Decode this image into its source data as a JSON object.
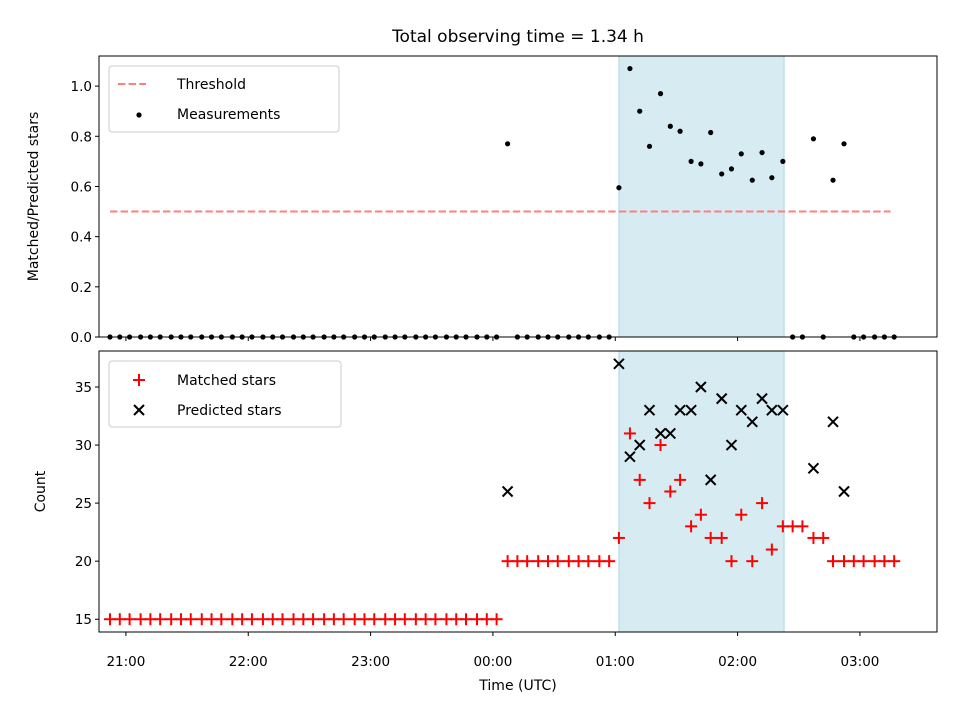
{
  "chart_data": [
    {
      "type": "scatter",
      "title": "Total observing time = 1.34 h",
      "xlabel": "",
      "ylabel": "Matched/Predicted stars",
      "xlim": [
        20.78,
        27.63
      ],
      "ylim": [
        0,
        1.12
      ],
      "yticks": [
        0.0,
        0.2,
        0.4,
        0.6,
        0.8,
        1.0
      ],
      "ytick_labels": [
        "0.0",
        "0.2",
        "0.4",
        "0.6",
        "0.8",
        "1.0"
      ],
      "legend_placement": "top-left",
      "span": {
        "x_start": 25.03,
        "x_end": 26.38,
        "color": "#add8e6"
      },
      "threshold": {
        "name": "Threshold",
        "y": 0.5,
        "x_start": 20.87,
        "x_end": 27.25,
        "color": "#ff7f7f"
      },
      "series": [
        {
          "name": "Measurements",
          "color": "#000000",
          "x": [
            20.87,
            20.95,
            21.03,
            21.12,
            21.2,
            21.28,
            21.37,
            21.45,
            21.53,
            21.62,
            21.7,
            21.78,
            21.87,
            21.95,
            22.03,
            22.12,
            22.2,
            22.28,
            22.37,
            22.45,
            22.53,
            22.62,
            22.7,
            22.78,
            22.87,
            22.95,
            23.03,
            23.12,
            23.2,
            23.28,
            23.37,
            23.45,
            23.53,
            23.62,
            23.7,
            23.78,
            23.87,
            23.95,
            24.03,
            24.12,
            24.2,
            24.28,
            24.37,
            24.45,
            24.53,
            24.62,
            24.7,
            24.78,
            24.87,
            24.95,
            25.03,
            25.12,
            25.2,
            25.28,
            25.37,
            25.45,
            25.53,
            25.62,
            25.7,
            25.78,
            25.87,
            25.95,
            26.03,
            26.12,
            26.2,
            26.28,
            26.37,
            26.45,
            26.53,
            26.62,
            26.7,
            26.78,
            26.87,
            26.95,
            27.03,
            27.12,
            27.2,
            27.28
          ],
          "y": [
            0,
            0,
            0,
            0,
            0,
            0,
            0,
            0,
            0,
            0,
            0,
            0,
            0,
            0,
            0,
            0,
            0,
            0,
            0,
            0,
            0,
            0,
            0,
            0,
            0,
            0,
            0,
            0,
            0,
            0,
            0,
            0,
            0,
            0,
            0,
            0,
            0,
            0,
            0,
            0.77,
            0,
            0,
            0,
            0,
            0,
            0,
            0,
            0,
            0,
            0,
            0.595,
            1.07,
            0.9,
            0.76,
            0.97,
            0.84,
            0.82,
            0.7,
            0.69,
            0.815,
            0.65,
            0.67,
            0.73,
            0.625,
            0.735,
            0.635,
            0.7,
            0,
            0,
            0.79,
            0,
            0.625,
            0.77,
            0,
            0,
            0,
            0,
            0
          ]
        }
      ]
    },
    {
      "type": "scatter",
      "title": "",
      "xlabel": "Time (UTC)",
      "ylabel": "Count",
      "xlim": [
        20.78,
        27.63
      ],
      "ylim": [
        13.9,
        38.1
      ],
      "yticks": [
        15,
        20,
        25,
        30,
        35
      ],
      "ytick_labels": [
        "15",
        "20",
        "25",
        "30",
        "35"
      ],
      "xticks": [
        21,
        22,
        23,
        24,
        25,
        26,
        27
      ],
      "xtick_labels": [
        "21:00",
        "22:00",
        "23:00",
        "00:00",
        "01:00",
        "02:00",
        "03:00"
      ],
      "legend_placement": "top-left",
      "span": {
        "x_start": 25.03,
        "x_end": 26.38,
        "color": "#add8e6"
      },
      "series": [
        {
          "name": "Matched stars",
          "marker": "+",
          "color": "#ff0000",
          "x": [
            20.87,
            20.95,
            21.03,
            21.12,
            21.2,
            21.28,
            21.37,
            21.45,
            21.53,
            21.62,
            21.7,
            21.78,
            21.87,
            21.95,
            22.03,
            22.12,
            22.2,
            22.28,
            22.37,
            22.45,
            22.53,
            22.62,
            22.7,
            22.78,
            22.87,
            22.95,
            23.03,
            23.12,
            23.2,
            23.28,
            23.37,
            23.45,
            23.53,
            23.62,
            23.7,
            23.78,
            23.87,
            23.95,
            24.03,
            24.12,
            24.2,
            24.28,
            24.37,
            24.45,
            24.53,
            24.62,
            24.7,
            24.78,
            24.87,
            24.95,
            25.03,
            25.12,
            25.2,
            25.28,
            25.37,
            25.45,
            25.53,
            25.62,
            25.7,
            25.78,
            25.87,
            25.95,
            26.03,
            26.12,
            26.2,
            26.28,
            26.37,
            26.45,
            26.53,
            26.62,
            26.7,
            26.78,
            26.87,
            26.95,
            27.03,
            27.12,
            27.2,
            27.28
          ],
          "y": [
            15,
            15,
            15,
            15,
            15,
            15,
            15,
            15,
            15,
            15,
            15,
            15,
            15,
            15,
            15,
            15,
            15,
            15,
            15,
            15,
            15,
            15,
            15,
            15,
            15,
            15,
            15,
            15,
            15,
            15,
            15,
            15,
            15,
            15,
            15,
            15,
            15,
            15,
            15,
            20,
            20,
            20,
            20,
            20,
            20,
            20,
            20,
            20,
            20,
            20,
            22,
            31,
            27,
            25,
            30,
            26,
            27,
            23,
            24,
            22,
            22,
            20,
            24,
            20,
            25,
            21,
            23,
            23,
            23,
            22,
            22,
            20,
            20,
            20,
            20,
            20,
            20,
            20
          ]
        },
        {
          "name": "Predicted stars",
          "marker": "x",
          "color": "#000000",
          "x": [
            24.12,
            25.03,
            25.12,
            25.2,
            25.28,
            25.37,
            25.45,
            25.53,
            25.62,
            25.7,
            25.78,
            25.87,
            25.95,
            26.03,
            26.12,
            26.2,
            26.28,
            26.37,
            26.62,
            26.78,
            26.87
          ],
          "y": [
            26,
            37,
            29,
            30,
            33,
            31,
            31,
            33,
            33,
            35,
            27,
            34,
            30,
            33,
            32,
            34,
            33,
            33,
            28,
            32,
            26
          ]
        }
      ]
    }
  ]
}
